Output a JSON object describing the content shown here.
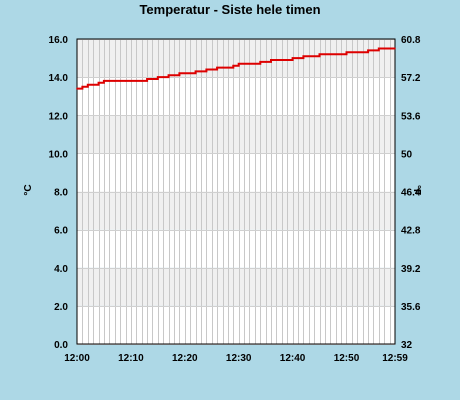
{
  "chart_data": {
    "type": "line",
    "title": "Temperatur - Siste hele timen",
    "ylabel": "°C",
    "ylabel_right": "°F",
    "xlim": [
      "12:00",
      "12:59"
    ],
    "ylim": [
      0,
      16
    ],
    "ylim_right": [
      32,
      60.8
    ],
    "grid": true,
    "y_ticks": [
      "0.0",
      "2.0",
      "4.0",
      "6.0",
      "8.0",
      "10.0",
      "12.0",
      "14.0",
      "16.0"
    ],
    "y_ticks_right": [
      "32",
      "35.6",
      "39.2",
      "42.8",
      "46.4",
      "50",
      "53.6",
      "57.2",
      "60.8"
    ],
    "x_ticks": [
      "12:00",
      "12:10",
      "12:20",
      "12:30",
      "12:40",
      "12:50",
      "12:59"
    ],
    "line_color": "#dd0000",
    "series": [
      {
        "x": [
          "12:00",
          "12:01",
          "12:02",
          "12:03",
          "12:04",
          "12:05",
          "12:06",
          "12:07",
          "12:08",
          "12:09",
          "12:10",
          "12:11",
          "12:12",
          "12:13",
          "12:14",
          "12:15",
          "12:16",
          "12:17",
          "12:18",
          "12:19",
          "12:20",
          "12:21",
          "12:22",
          "12:23",
          "12:24",
          "12:25",
          "12:26",
          "12:27",
          "12:28",
          "12:29",
          "12:30",
          "12:31",
          "12:32",
          "12:33",
          "12:34",
          "12:35",
          "12:36",
          "12:37",
          "12:38",
          "12:39",
          "12:40",
          "12:41",
          "12:42",
          "12:43",
          "12:44",
          "12:45",
          "12:46",
          "12:47",
          "12:48",
          "12:49",
          "12:50",
          "12:51",
          "12:52",
          "12:53",
          "12:54",
          "12:55",
          "12:56",
          "12:57",
          "12:58",
          "12:59"
        ],
        "values": [
          13.4,
          13.5,
          13.6,
          13.6,
          13.7,
          13.8,
          13.8,
          13.8,
          13.8,
          13.8,
          13.8,
          13.8,
          13.8,
          13.9,
          13.9,
          14.0,
          14.0,
          14.1,
          14.1,
          14.2,
          14.2,
          14.2,
          14.3,
          14.3,
          14.4,
          14.4,
          14.5,
          14.5,
          14.5,
          14.6,
          14.7,
          14.7,
          14.7,
          14.7,
          14.8,
          14.8,
          14.9,
          14.9,
          14.9,
          14.9,
          15.0,
          15.0,
          15.1,
          15.1,
          15.1,
          15.2,
          15.2,
          15.2,
          15.2,
          15.2,
          15.3,
          15.3,
          15.3,
          15.3,
          15.4,
          15.4,
          15.5,
          15.5,
          15.5,
          15.5
        ]
      }
    ]
  }
}
